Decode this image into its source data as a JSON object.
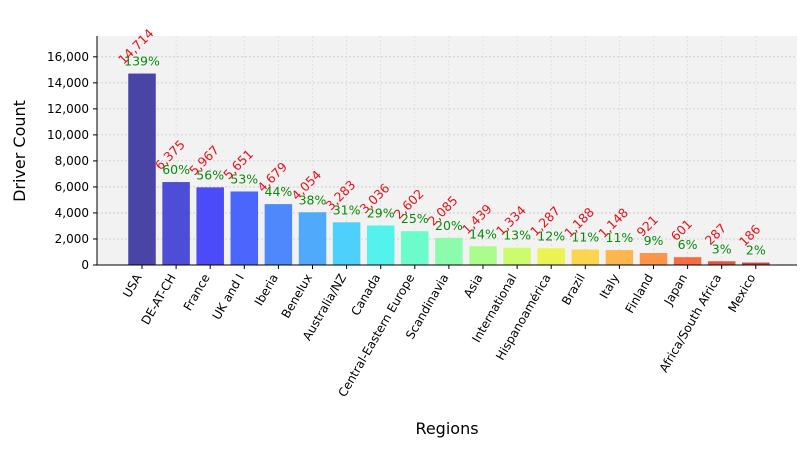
{
  "chart_data": {
    "type": "bar",
    "title": "",
    "xlabel": "Regions",
    "ylabel": "Driver Count",
    "ylim": [
      0,
      17600
    ],
    "yticks": [
      0,
      2000,
      4000,
      6000,
      8000,
      10000,
      12000,
      14000,
      16000
    ],
    "ytick_labels": [
      "0",
      "2,000",
      "4,000",
      "6,000",
      "8,000",
      "10,000",
      "12,000",
      "14,000",
      "16,000"
    ],
    "grid": true,
    "categories": [
      "USA",
      "DE-AT-CH",
      "France",
      "UK and I",
      "Iberia",
      "Benelux",
      "Australia/NZ",
      "Canada",
      "Central-Eastern Europe",
      "Scandinavia",
      "Asia",
      "International",
      "Hispanoamérica",
      "Brazil",
      "Italy",
      "Finland",
      "Japan",
      "Africa/South Africa",
      "Mexico"
    ],
    "values": [
      14714,
      6375,
      5967,
      5651,
      4679,
      4054,
      3283,
      3036,
      2602,
      2085,
      1439,
      1334,
      1287,
      1188,
      1148,
      921,
      601,
      287,
      186
    ],
    "value_labels": [
      "14,714",
      "6,375",
      "5,967",
      "5,651",
      "4,679",
      "4,054",
      "3,283",
      "3,036",
      "2,602",
      "2,085",
      "1,439",
      "1,334",
      "1,287",
      "1,188",
      "1,148",
      "921",
      "601",
      "287",
      "186"
    ],
    "percent_labels": [
      "139%",
      "60%",
      "56%",
      "53%",
      "44%",
      "38%",
      "31%",
      "29%",
      "25%",
      "20%",
      "14%",
      "13%",
      "12%",
      "11%",
      "11%",
      "9%",
      "6%",
      "3%",
      "2%"
    ],
    "colors": [
      "#3a36a0",
      "#3f3fd6",
      "#3d3dfb",
      "#3d5afe",
      "#3f7ffd",
      "#42a3fc",
      "#40cdfd",
      "#46f2ec",
      "#61fdc9",
      "#83fda6",
      "#a4fd84",
      "#c8fd63",
      "#e9f343",
      "#fdd342",
      "#fdb13f",
      "#fd8d3a",
      "#f76232",
      "#e4462e",
      "#d03228"
    ]
  }
}
